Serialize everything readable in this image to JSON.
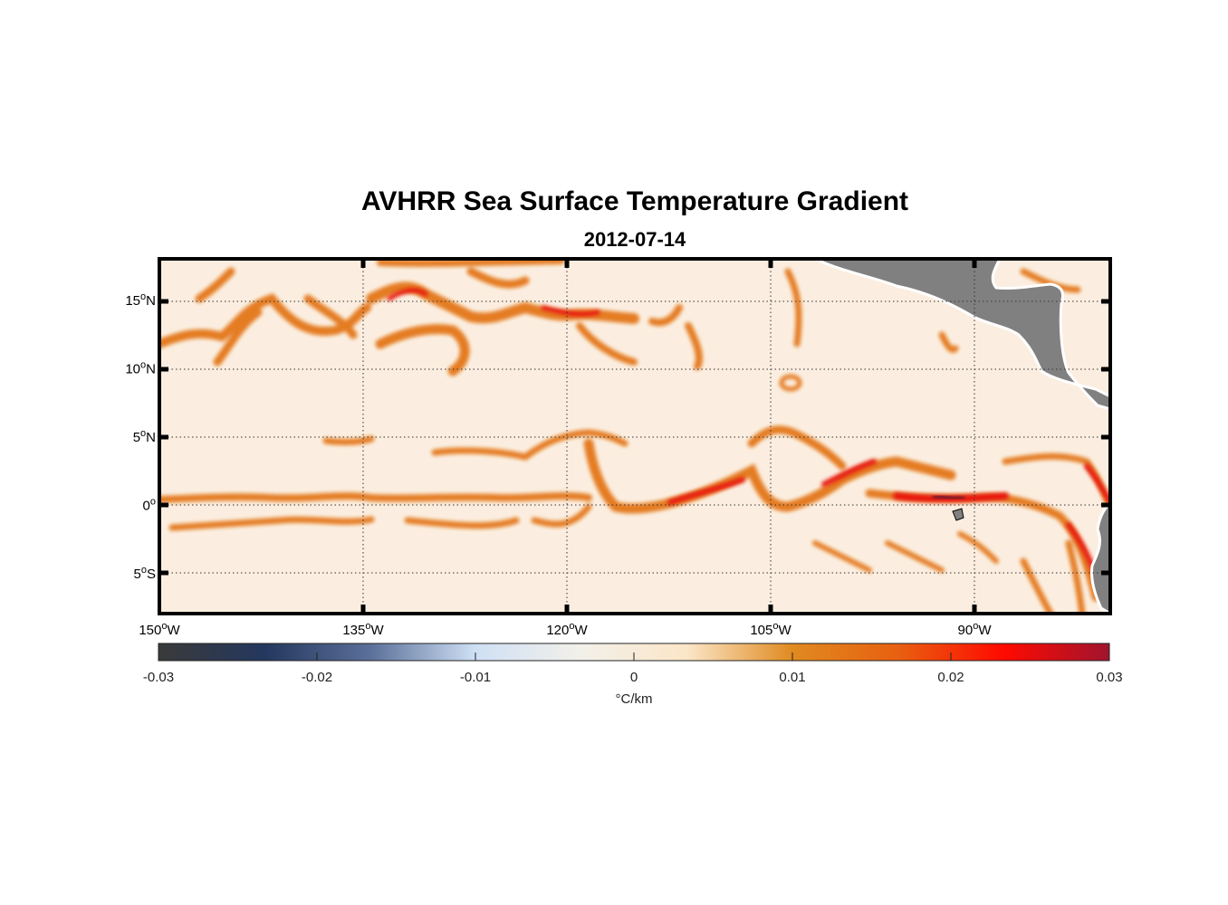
{
  "title": "AVHRR Sea Surface Temperature Gradient",
  "subtitle": "2012-07-14",
  "chart_data": {
    "type": "heatmap",
    "projection": "equirectangular",
    "lon_range": [
      -150,
      -80
    ],
    "lat_range": [
      -8,
      18
    ],
    "x_ticks": [
      {
        "value": -150,
        "label": "150",
        "sup": "o",
        "suffix": "W"
      },
      {
        "value": -135,
        "label": "135",
        "sup": "o",
        "suffix": "W"
      },
      {
        "value": -120,
        "label": "120",
        "sup": "o",
        "suffix": "W"
      },
      {
        "value": -105,
        "label": "105",
        "sup": "o",
        "suffix": "W"
      },
      {
        "value": -90,
        "label": "90",
        "sup": "o",
        "suffix": "W"
      }
    ],
    "y_ticks": [
      {
        "value": 15,
        "label": "15",
        "sup": "o",
        "suffix": "N"
      },
      {
        "value": 10,
        "label": "10",
        "sup": "o",
        "suffix": "N"
      },
      {
        "value": 5,
        "label": "5",
        "sup": "o",
        "suffix": "N"
      },
      {
        "value": 0,
        "label": "0",
        "sup": "o",
        "suffix": ""
      },
      {
        "value": -5,
        "label": "5",
        "sup": "o",
        "suffix": "S"
      }
    ],
    "grid": true,
    "colorbar": {
      "range": [
        -0.03,
        0.03
      ],
      "ticks": [
        "-0.03",
        "-0.02",
        "-0.01",
        "0",
        "0.01",
        "0.02",
        "0.03"
      ],
      "label": "°C/km",
      "placement": "bottom",
      "colors": [
        "#3a3a3a",
        "#24375e",
        "#5a6f99",
        "#cfe0f4",
        "#f3f0ea",
        "#fbe6c8",
        "#e08a20",
        "#e86010",
        "#ff0a00",
        "#a0142e"
      ]
    }
  },
  "colors": {
    "land": "#808080",
    "ocean_bg": "#fbeee0",
    "front": "#e2700a",
    "strong_front": "#e81808"
  }
}
